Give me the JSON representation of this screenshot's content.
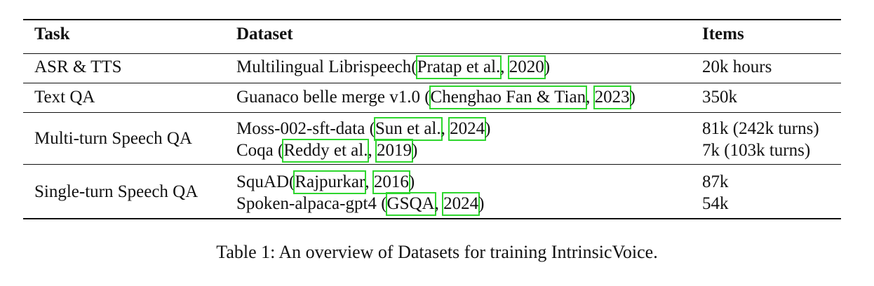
{
  "table": {
    "headers": {
      "task": "Task",
      "dataset": "Dataset",
      "items": "Items"
    },
    "rows": [
      {
        "task": "ASR & TTS",
        "datasets": [
          {
            "name": "Multilingual Librispeech",
            "open": "(",
            "author": "Pratap et al.",
            "sep": ", ",
            "year": "2020",
            "close": ")",
            "items": "20k hours"
          }
        ]
      },
      {
        "task": "Text QA",
        "datasets": [
          {
            "name": "Guanaco belle merge v1.0 ",
            "open": "(",
            "author": "Chenghao Fan & Tian",
            "sep": ", ",
            "year": "2023",
            "close": ")",
            "items": "350k"
          }
        ]
      },
      {
        "task": "Multi-turn Speech QA",
        "datasets": [
          {
            "name": "Moss-002-sft-data ",
            "open": "(",
            "author": "Sun et al.",
            "sep": ", ",
            "year": "2024",
            "close": ")",
            "items": "81k (242k turns)"
          },
          {
            "name": "Coqa ",
            "open": "(",
            "author": "Reddy et al.",
            "sep": ", ",
            "year": "2019",
            "close": ")",
            "items": "7k (103k turns)"
          }
        ]
      },
      {
        "task": "Single-turn Speech QA",
        "datasets": [
          {
            "name": "SquAD",
            "open": "(",
            "author": "Rajpurkar",
            "sep": ", ",
            "year": "2016",
            "close": ")",
            "items": "87k"
          },
          {
            "name": "Spoken-alpaca-gpt4 ",
            "open": "(",
            "author": "GSQA",
            "sep": ", ",
            "year": "2024",
            "close": ")",
            "items": "54k"
          }
        ]
      }
    ]
  },
  "caption": "Table 1: An overview of Datasets for training IntrinsicVoice.",
  "colors": {
    "citation_box": "#2ed62e",
    "text": "#111111"
  }
}
